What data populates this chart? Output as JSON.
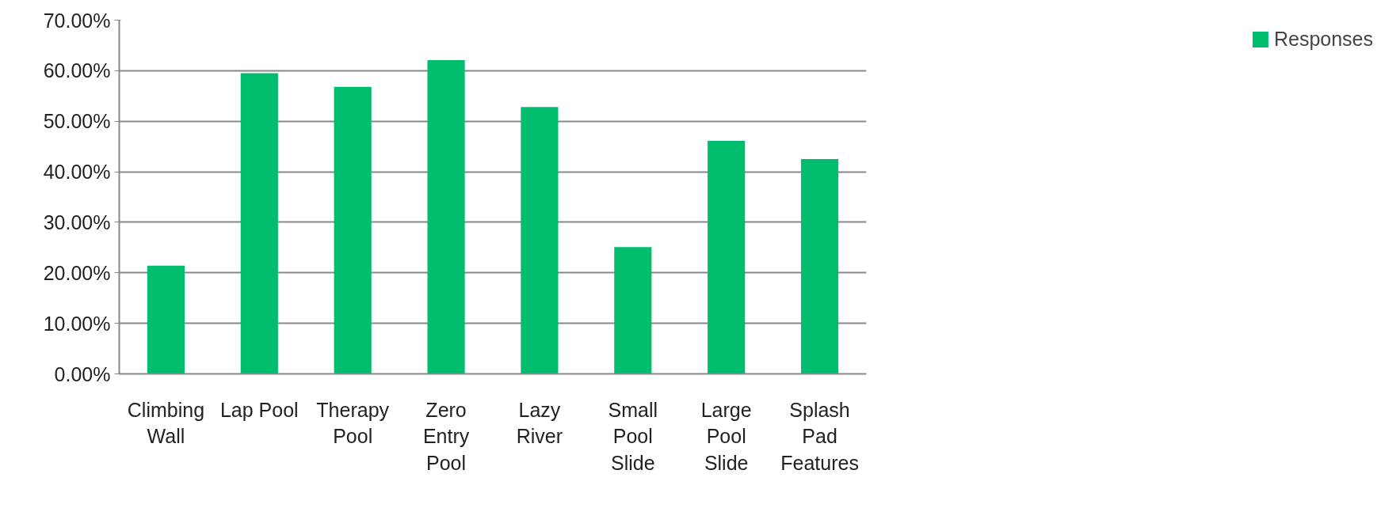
{
  "chart_data": {
    "type": "bar",
    "categories": [
      "Climbing\nWall",
      "Lap Pool",
      "Therapy\nPool",
      "Zero\nEntry\nPool",
      "Lazy\nRiver",
      "Small\nPool\nSlide",
      "Large\nPool\nSlide",
      "Splash\nPad\nFeatures"
    ],
    "series": [
      {
        "name": "Responses",
        "color": "#00be6e",
        "values": [
          21.4,
          59.5,
          56.8,
          62.1,
          52.8,
          25.1,
          46.1,
          42.5
        ]
      }
    ],
    "ylim": [
      0,
      70
    ],
    "yticks": [
      {
        "value": 0,
        "label": "0.00%"
      },
      {
        "value": 10,
        "label": "10.00%"
      },
      {
        "value": 20,
        "label": "20.00%"
      },
      {
        "value": 30,
        "label": "30.00%"
      },
      {
        "value": 40,
        "label": "40.00%"
      },
      {
        "value": 50,
        "label": "50.00%"
      },
      {
        "value": 60,
        "label": "60.00%"
      },
      {
        "value": 70,
        "label": "70.00%"
      }
    ],
    "grid": "y",
    "legend": "right"
  }
}
